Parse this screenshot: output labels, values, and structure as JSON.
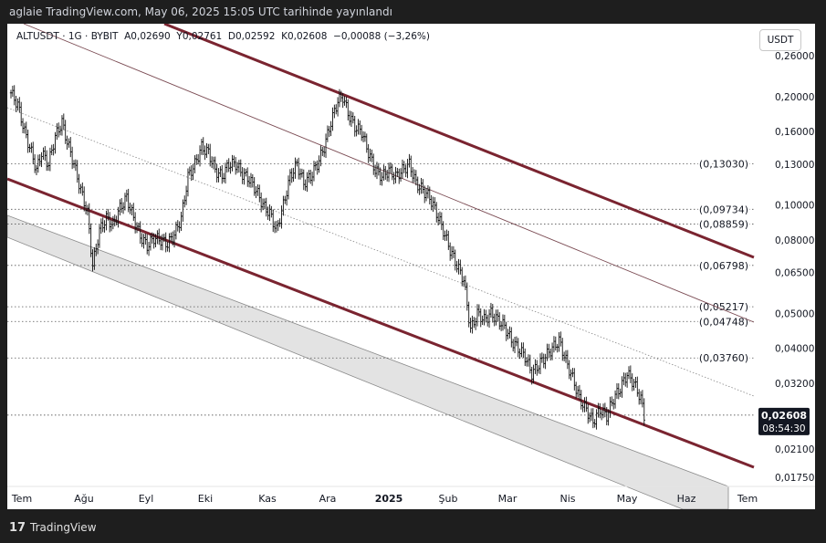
{
  "header": {
    "published": "aglaie TradingView.com, May 06, 2025 15:05 UTC tarihinde yayınlandı"
  },
  "legend": {
    "text": "ALTUSDT · 1G · BYBIT  A0,02690  Y0,02761  D0,02592  K0,02608  −0,00088 (−3,26%)"
  },
  "currency_button": "USDT",
  "footer": {
    "logo_mark": "17",
    "logo_text": "TradingView"
  },
  "chart_data": {
    "type": "candlestick",
    "symbol": "ALTUSDT",
    "interval": "1G",
    "exchange": "BYBIT",
    "scale": "log",
    "y_ticks": [
      "0,26000",
      "0,20000",
      "0,16000",
      "0,13000",
      "0,10000",
      "0,08000",
      "0,06500",
      "0,05000",
      "0,04000",
      "0,03200",
      "0,02100",
      "0,01750"
    ],
    "y_tick_values": [
      0.26,
      0.2,
      0.16,
      0.13,
      0.1,
      0.08,
      0.065,
      0.05,
      0.04,
      0.032,
      0.021,
      0.0175
    ],
    "x_ticks": [
      "Tem",
      "Ağu",
      "Eyl",
      "Eki",
      "Kas",
      "Ara",
      "2025",
      "Şub",
      "Mar",
      "Nis",
      "May",
      "Haz",
      "Tem"
    ],
    "horizontal_levels": [
      {
        "label": "(0,13030)",
        "value": 0.1303
      },
      {
        "label": "(0,09734)",
        "value": 0.09734
      },
      {
        "label": "(0,08859)",
        "value": 0.08859
      },
      {
        "label": "(0,06798)",
        "value": 0.06798
      },
      {
        "label": "(0,05217)",
        "value": 0.05217
      },
      {
        "label": "(0,04748)",
        "value": 0.04748
      },
      {
        "label": "(0,03760)",
        "value": 0.0376
      }
    ],
    "last_price": {
      "label": "0,02608",
      "value": 0.02608,
      "countdown": "08:54:30"
    },
    "price_path": [
      [
        0,
        0.205
      ],
      [
        4,
        0.19
      ],
      [
        8,
        0.16
      ],
      [
        12,
        0.14
      ],
      [
        15,
        0.125
      ],
      [
        18,
        0.14
      ],
      [
        22,
        0.13
      ],
      [
        26,
        0.155
      ],
      [
        30,
        0.17
      ],
      [
        33,
        0.15
      ],
      [
        37,
        0.13
      ],
      [
        41,
        0.11
      ],
      [
        45,
        0.095
      ],
      [
        48,
        0.068
      ],
      [
        52,
        0.085
      ],
      [
        56,
        0.092
      ],
      [
        60,
        0.088
      ],
      [
        64,
        0.098
      ],
      [
        68,
        0.105
      ],
      [
        72,
        0.092
      ],
      [
        76,
        0.082
      ],
      [
        80,
        0.077
      ],
      [
        84,
        0.081
      ],
      [
        88,
        0.08
      ],
      [
        92,
        0.078
      ],
      [
        96,
        0.083
      ],
      [
        100,
        0.092
      ],
      [
        104,
        0.12
      ],
      [
        108,
        0.13
      ],
      [
        112,
        0.145
      ],
      [
        116,
        0.14
      ],
      [
        120,
        0.125
      ],
      [
        124,
        0.12
      ],
      [
        128,
        0.13
      ],
      [
        132,
        0.13
      ],
      [
        136,
        0.122
      ],
      [
        140,
        0.118
      ],
      [
        144,
        0.11
      ],
      [
        148,
        0.1
      ],
      [
        152,
        0.095
      ],
      [
        156,
        0.085
      ],
      [
        160,
        0.1
      ],
      [
        164,
        0.12
      ],
      [
        168,
        0.13
      ],
      [
        172,
        0.115
      ],
      [
        176,
        0.12
      ],
      [
        180,
        0.13
      ],
      [
        184,
        0.145
      ],
      [
        188,
        0.17
      ],
      [
        192,
        0.195
      ],
      [
        195,
        0.2
      ],
      [
        198,
        0.18
      ],
      [
        202,
        0.165
      ],
      [
        206,
        0.16
      ],
      [
        210,
        0.14
      ],
      [
        214,
        0.125
      ],
      [
        218,
        0.12
      ],
      [
        222,
        0.125
      ],
      [
        226,
        0.12
      ],
      [
        230,
        0.125
      ],
      [
        234,
        0.13
      ],
      [
        238,
        0.115
      ],
      [
        242,
        0.11
      ],
      [
        246,
        0.105
      ],
      [
        250,
        0.095
      ],
      [
        254,
        0.085
      ],
      [
        258,
        0.075
      ],
      [
        262,
        0.068
      ],
      [
        266,
        0.062
      ],
      [
        270,
        0.045
      ],
      [
        274,
        0.05
      ],
      [
        278,
        0.048
      ],
      [
        282,
        0.05
      ],
      [
        286,
        0.048
      ],
      [
        290,
        0.046
      ],
      [
        294,
        0.042
      ],
      [
        298,
        0.04
      ],
      [
        302,
        0.038
      ],
      [
        306,
        0.034
      ],
      [
        310,
        0.036
      ],
      [
        314,
        0.038
      ],
      [
        318,
        0.04
      ],
      [
        322,
        0.042
      ],
      [
        326,
        0.037
      ],
      [
        330,
        0.033
      ],
      [
        334,
        0.029
      ],
      [
        338,
        0.027
      ],
      [
        342,
        0.025
      ],
      [
        346,
        0.027
      ],
      [
        350,
        0.026
      ],
      [
        354,
        0.029
      ],
      [
        358,
        0.031
      ],
      [
        362,
        0.034
      ],
      [
        366,
        0.032
      ],
      [
        370,
        0.029
      ],
      [
        372,
        0.026
      ]
    ]
  }
}
